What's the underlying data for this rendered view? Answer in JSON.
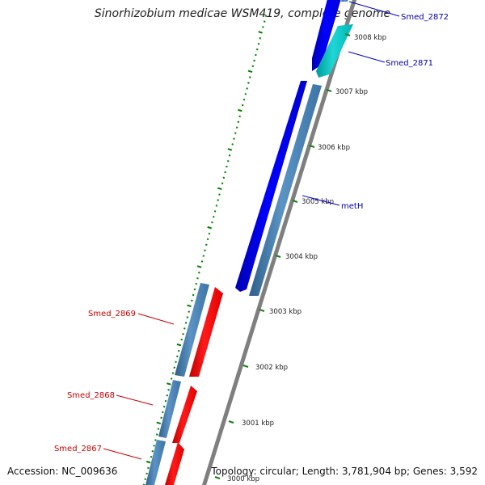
{
  "title": "Sinorhizobium medicae WSM419, complete genome",
  "footer": {
    "accession": "Accession: NC_009636",
    "summary": "Topology: circular; Length: 3,781,904 bp; Genes: 3,592"
  },
  "ticks": [
    "3008 kbp",
    "3007 kbp",
    "3006 kbp",
    "3005 kbp",
    "3004 kbp",
    "3003 kbp",
    "3002 kbp",
    "3001 kbp",
    "3000 kbp"
  ],
  "genes": {
    "smed_2872": "Smed_2872",
    "smed_2871": "Smed_2871",
    "meth": "metH",
    "smed_2869": "Smed_2869",
    "smed_2868": "Smed_2868",
    "smed_2867": "Smed_2867"
  },
  "colors": {
    "forward_gene": "#0000ff",
    "forward_gene_alt": "#00c8c8",
    "reverse_gene": "#ff0000",
    "cds_feature": "#4682b4",
    "backbone": "#808080",
    "gc_ticks": "#008000",
    "forward_label": "#0000aa",
    "reverse_label": "#cc0000"
  }
}
